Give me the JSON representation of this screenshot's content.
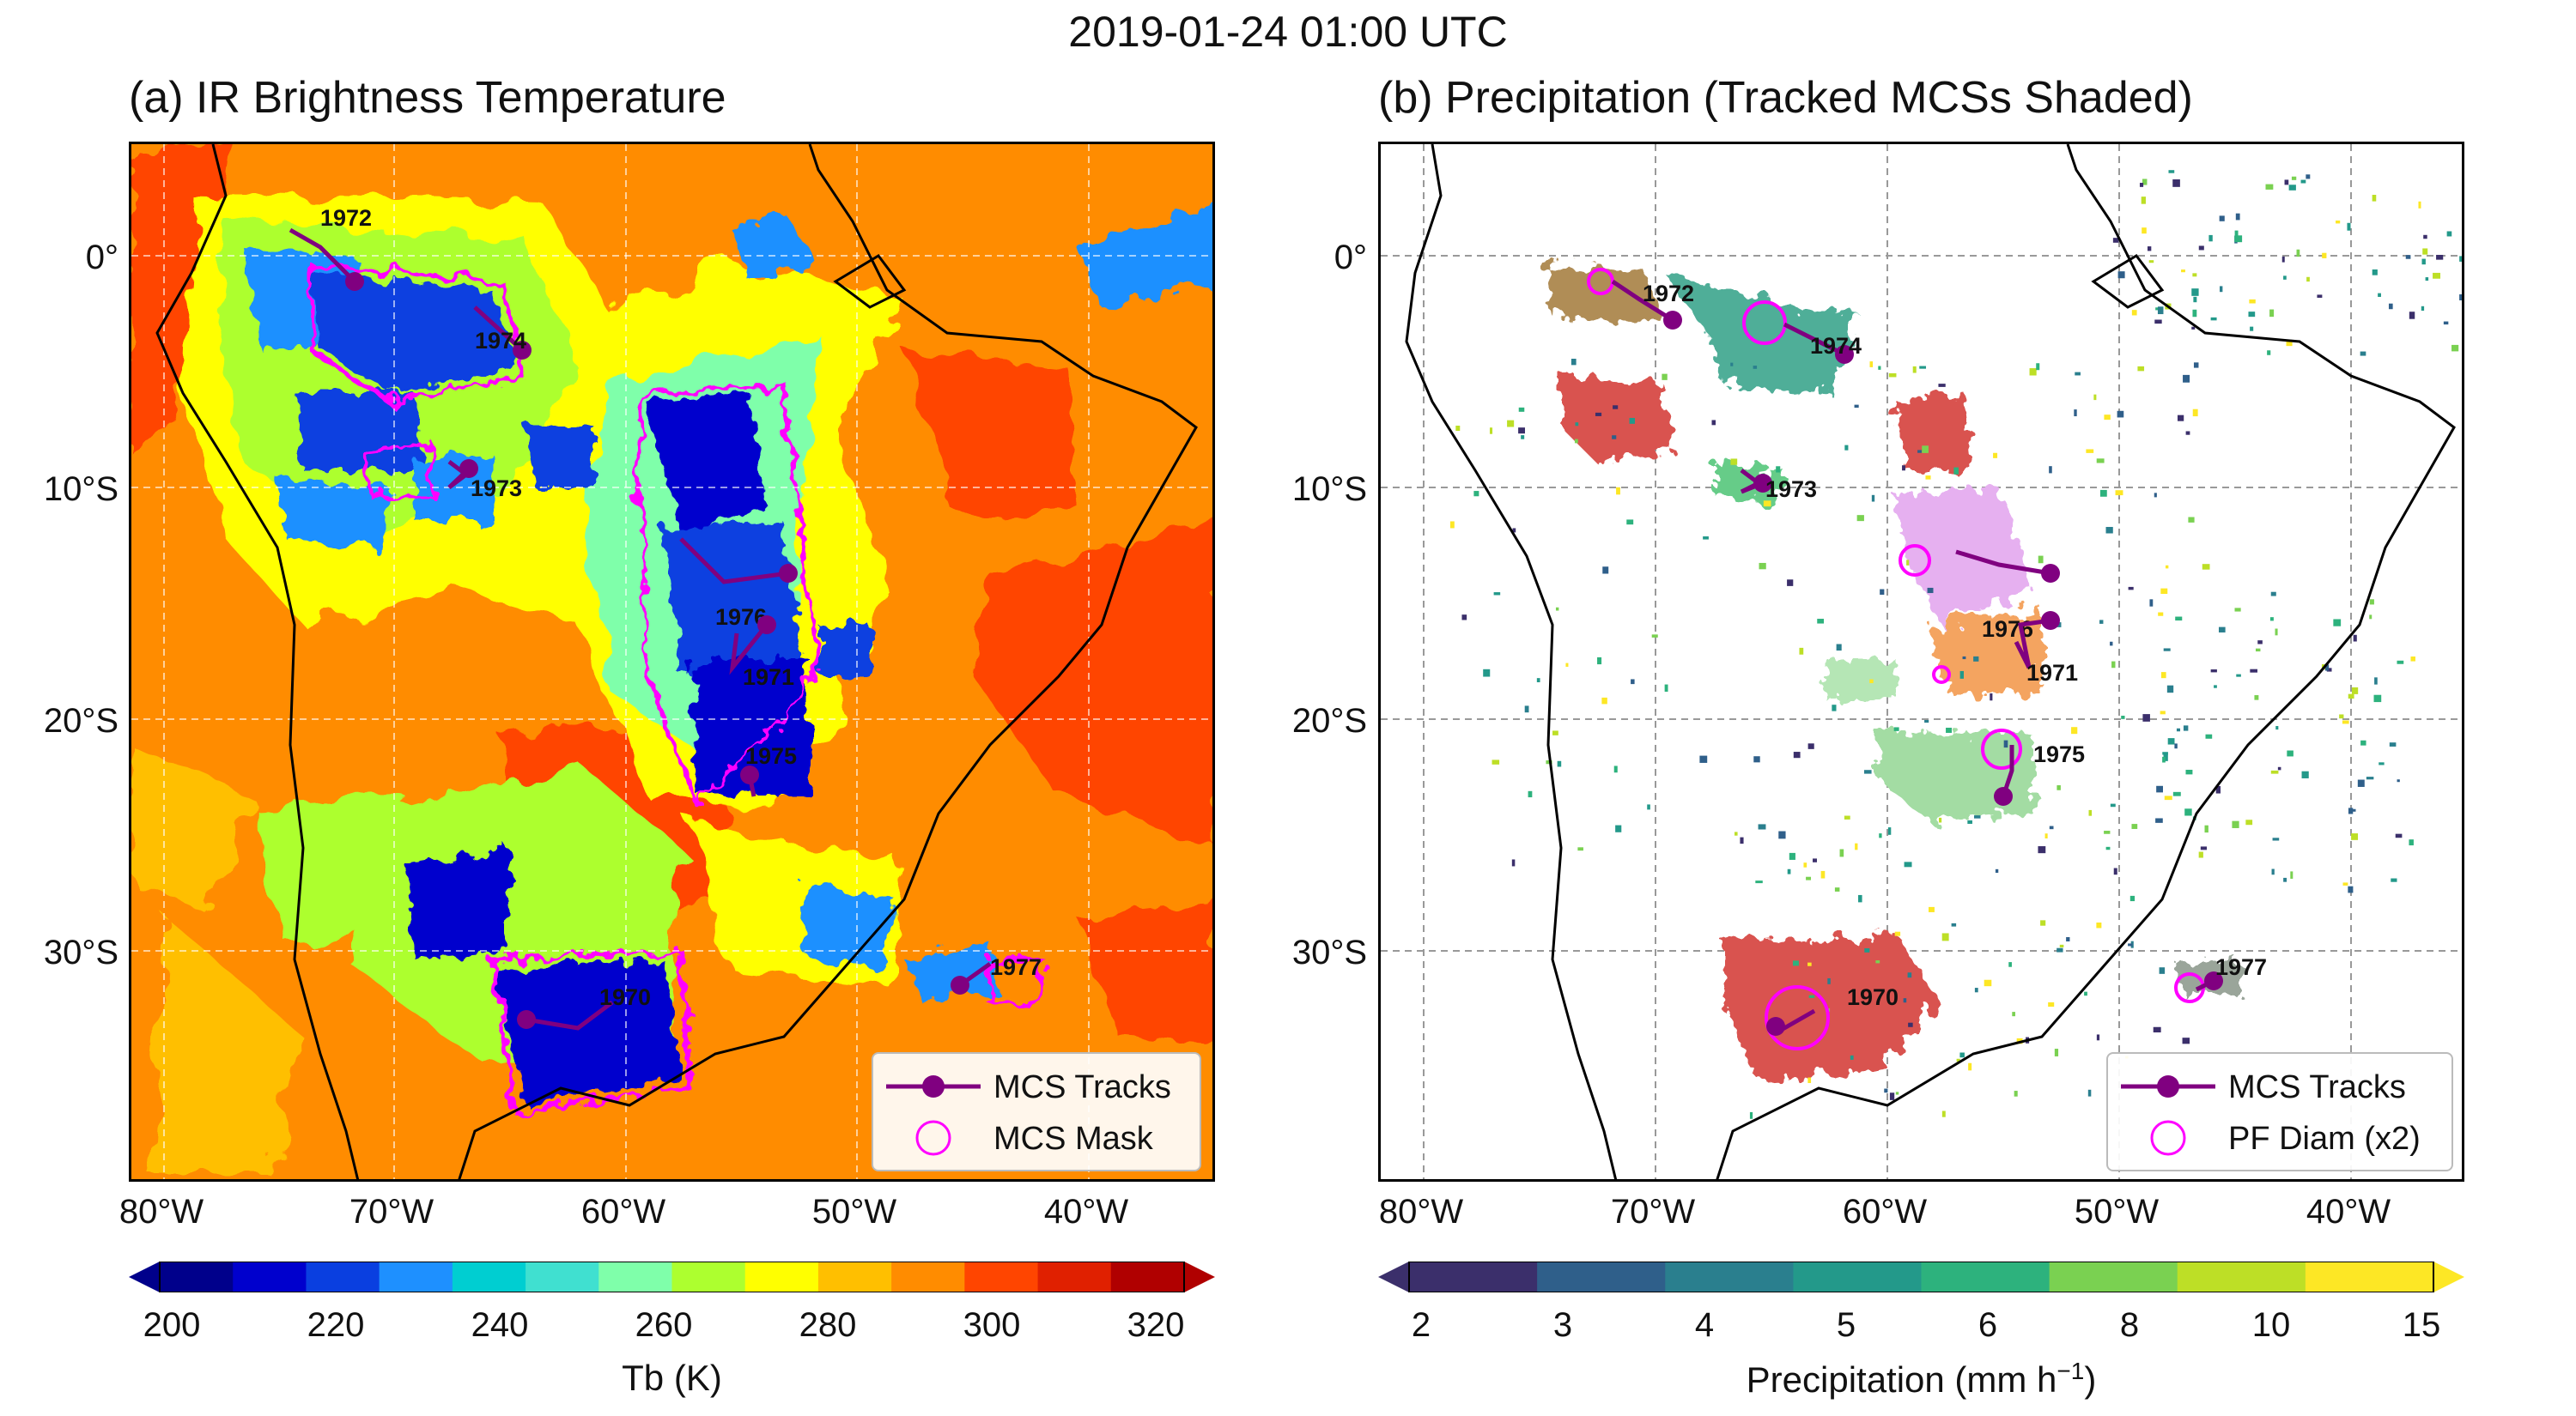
{
  "suptitle": "2019-01-24 01:00 UTC",
  "panel_a": {
    "title": "(a) IR Brightness Temperature",
    "legend": {
      "tracks": "MCS Tracks",
      "mask": "MCS Mask"
    },
    "colorbar": {
      "label": "Tb (K)",
      "ticks": [
        "200",
        "220",
        "240",
        "260",
        "280",
        "300",
        "320"
      ],
      "colors": [
        "#00008b",
        "#0000cd",
        "#0a3fe0",
        "#1e90ff",
        "#00ced1",
        "#40e0d0",
        "#7fffaa",
        "#adff2f",
        "#ffff00",
        "#ffbf00",
        "#ff8c00",
        "#ff4500",
        "#e02000",
        "#b00000"
      ]
    }
  },
  "panel_b": {
    "title": "(b) Precipitation (Tracked MCSs Shaded)",
    "legend": {
      "tracks": "MCS Tracks",
      "pf": "PF Diam (x2)"
    },
    "colorbar": {
      "label": "Precipitation (mm h",
      "label_sup": "−1",
      "label_end": ")",
      "ticks": [
        "2",
        "3",
        "4",
        "5",
        "6",
        "8",
        "10",
        "15"
      ],
      "colors": [
        "#3b2f6b",
        "#2f5f8a",
        "#2a7f8e",
        "#23998a",
        "#2db27d",
        "#7ad151",
        "#bddf26",
        "#fde725"
      ]
    }
  },
  "lat_ticks": [
    "0°",
    "10°S",
    "20°S",
    "30°S"
  ],
  "lon_ticks": [
    "80°W",
    "70°W",
    "60°W",
    "50°W",
    "40°W"
  ],
  "mcs_tracks": [
    {
      "id": "1972"
    },
    {
      "id": "1974"
    },
    {
      "id": "1973"
    },
    {
      "id": "1976"
    },
    {
      "id": "1971"
    },
    {
      "id": "1975"
    },
    {
      "id": "1970"
    },
    {
      "id": "1977"
    }
  ],
  "colors": {
    "track": "#800080",
    "mask": "#ff00ff"
  }
}
